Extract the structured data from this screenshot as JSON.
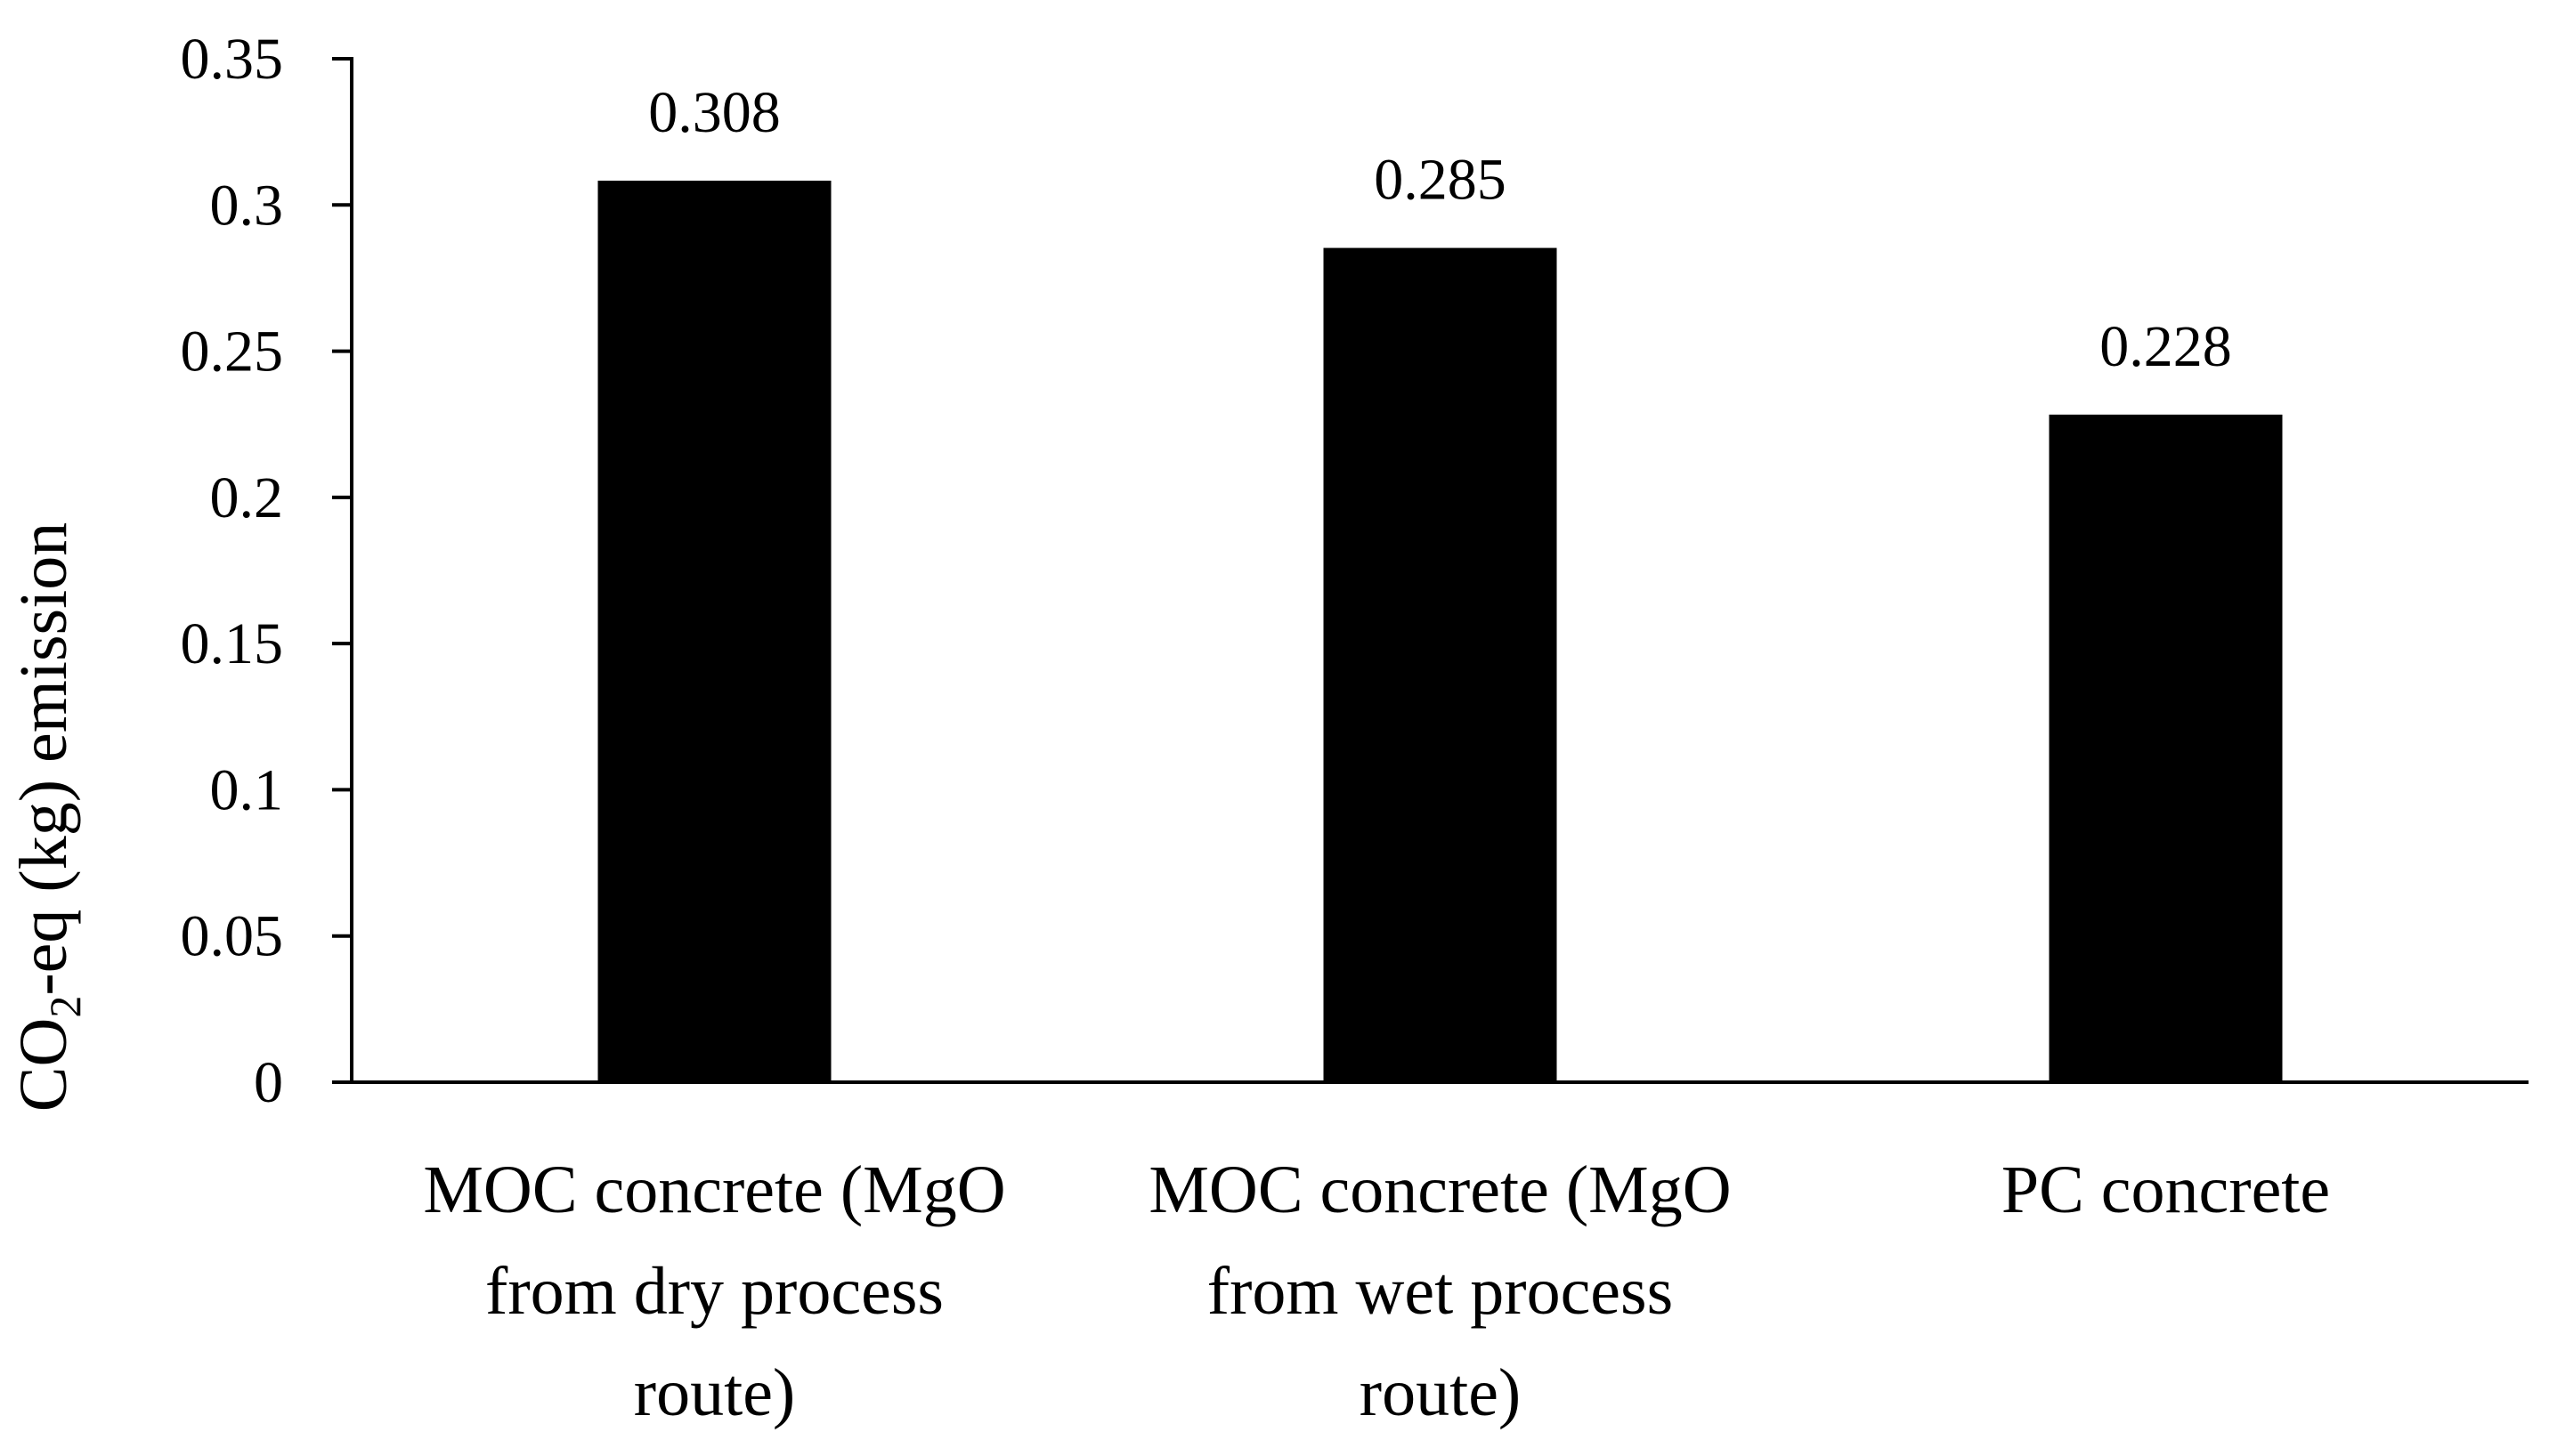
{
  "chart_data": {
    "type": "bar",
    "title": "",
    "xlabel": "",
    "ylabel": "CO2-eq (kg) emission",
    "ylabel_parts": {
      "main": "CO",
      "subscript": "2",
      "rest": "-eq (kg) emission"
    },
    "categories": [
      [
        "MOC concrete (MgO",
        "from dry process",
        "route)"
      ],
      [
        "MOC concrete (MgO",
        "from wet process",
        "route)"
      ],
      [
        "PC concrete"
      ]
    ],
    "values": [
      0.308,
      0.285,
      0.228
    ],
    "data_labels": [
      "0.308",
      "0.285",
      "0.228"
    ],
    "ylim": [
      0,
      0.35
    ],
    "yticks": [
      0,
      0.05,
      0.1,
      0.15,
      0.2,
      0.25,
      0.3,
      0.35
    ],
    "ytick_labels": [
      "0",
      "0.05",
      "0.1",
      "0.15",
      "0.2",
      "0.25",
      "0.3",
      "0.35"
    ],
    "grid": false,
    "legend": "none",
    "bar_color": "#000000"
  }
}
